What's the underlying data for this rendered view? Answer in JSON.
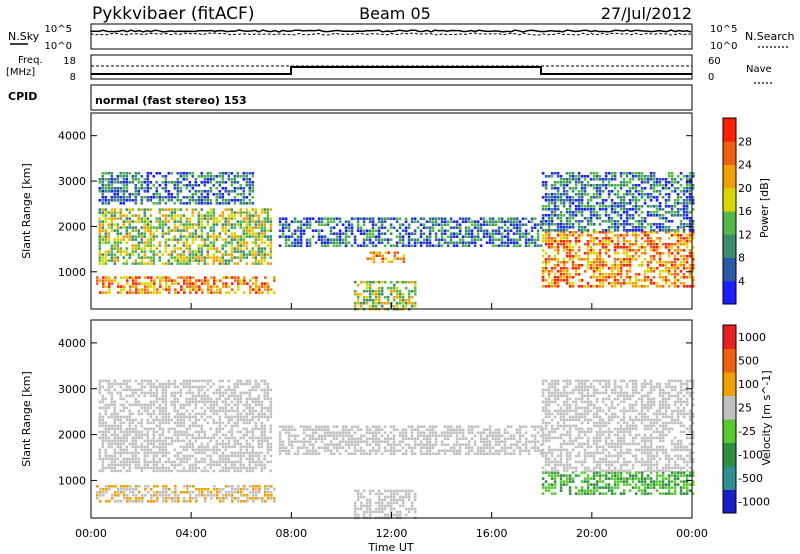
{
  "header": {
    "station": "Pykkvibaer (fitACF)",
    "beam": "Beam 05",
    "date": "27/Jul/2012"
  },
  "noise_panel": {
    "left_label": "N.Sky",
    "right_label": "N.Search",
    "left_ticks": [
      "10^5",
      "10^0"
    ],
    "right_ticks": [
      "10^5",
      "10^0"
    ]
  },
  "freq_panel": {
    "left_label_1": "Freq.",
    "left_label_2": "[MHz]",
    "right_label": "Nave",
    "left_ticks": [
      "18",
      "8"
    ],
    "right_ticks": [
      "60",
      "0"
    ]
  },
  "cpid_panel": {
    "label": "CPID",
    "text": "normal (fast stereo) 153"
  },
  "time_axis": {
    "label": "Time UT",
    "ticks": [
      "00:00",
      "04:00",
      "08:00",
      "12:00",
      "16:00",
      "20:00",
      "00:00"
    ]
  },
  "chart_data": [
    {
      "type": "heatmap",
      "title": "",
      "ylabel": "Slant Range [km]",
      "xlabel": "Time UT",
      "xlim": [
        0,
        24
      ],
      "ylim": [
        180,
        4500
      ],
      "yticks": [
        "1000",
        "2000",
        "3000",
        "4000"
      ],
      "colorbar": {
        "label": "Power [dB]",
        "ticks": [
          "4",
          "8",
          "12",
          "16",
          "20",
          "24",
          "28"
        ],
        "colors": [
          "#1d1dff",
          "#2a5aa8",
          "#3a8e6e",
          "#52b848",
          "#d8d800",
          "#f0a000",
          "#f06010",
          "#ff2000"
        ]
      },
      "regions": [
        {
          "t0": 0.2,
          "t1": 7.3,
          "r0": 550,
          "r1": 900,
          "level": "high"
        },
        {
          "t0": 0.3,
          "t1": 7.2,
          "r0": 1200,
          "r1": 2400,
          "level": "medium"
        },
        {
          "t0": 0.3,
          "t1": 6.5,
          "r0": 2500,
          "r1": 3200,
          "level": "low"
        },
        {
          "t0": 7.5,
          "t1": 18.0,
          "r0": 1600,
          "r1": 2200,
          "level": "low"
        },
        {
          "t0": 10.5,
          "t1": 13.0,
          "r0": 200,
          "r1": 800,
          "level": "medium"
        },
        {
          "t0": 11.0,
          "t1": 12.5,
          "r0": 1250,
          "r1": 1450,
          "level": "high"
        },
        {
          "t0": 18.0,
          "t1": 24.0,
          "r0": 700,
          "r1": 1900,
          "level": "high"
        },
        {
          "t0": 18.0,
          "t1": 24.0,
          "r0": 1900,
          "r1": 3200,
          "level": "low"
        }
      ]
    },
    {
      "type": "heatmap",
      "title": "",
      "ylabel": "Slant Range [km]",
      "xlabel": "Time UT",
      "xlim": [
        0,
        24
      ],
      "ylim": [
        180,
        4500
      ],
      "yticks": [
        "1000",
        "2000",
        "3000",
        "4000"
      ],
      "colorbar": {
        "label": "Velocity [m s^-1]",
        "ticks": [
          "1000",
          "500",
          "100",
          "25",
          "-25",
          "-100",
          "-500",
          "-1000"
        ],
        "colors": [
          "#1d1dc8",
          "#2e8e90",
          "#2e8e40",
          "#58c830",
          "#c0c0c0",
          "#f0a000",
          "#f06010",
          "#e82020"
        ]
      },
      "regions": [
        {
          "t0": 0.2,
          "t1": 7.3,
          "r0": 550,
          "r1": 900,
          "level": "negative"
        },
        {
          "t0": 0.3,
          "t1": 7.2,
          "r0": 1200,
          "r1": 3200,
          "level": "ground"
        },
        {
          "t0": 7.5,
          "t1": 18.0,
          "r0": 1600,
          "r1": 2200,
          "level": "ground"
        },
        {
          "t0": 10.5,
          "t1": 13.0,
          "r0": 200,
          "r1": 800,
          "level": "ground"
        },
        {
          "t0": 18.0,
          "t1": 24.0,
          "r0": 700,
          "r1": 1200,
          "level": "positive"
        },
        {
          "t0": 18.0,
          "t1": 24.0,
          "r0": 1200,
          "r1": 3200,
          "level": "ground"
        }
      ]
    }
  ]
}
